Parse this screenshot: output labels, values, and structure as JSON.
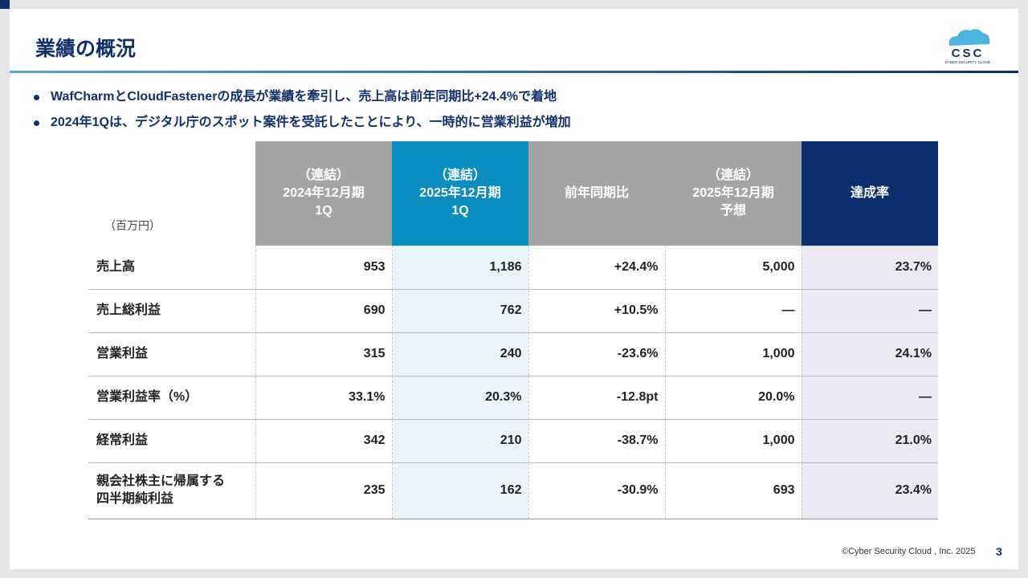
{
  "title": "業績の概況",
  "logo": {
    "text": "CSC",
    "subtext": "CYBER SECURITY CLOUD"
  },
  "bullets": [
    "WafCharmとCloudFastenerの成長が業績を牽引し、売上高は前年同期比+24.4%で着地",
    "2024年1Qは、デジタル庁のスポット案件を受託したことにより、一時的に営業利益が増加"
  ],
  "table": {
    "unit": "（百万円）",
    "headers": [
      [
        "（連結）",
        "2024年12月期",
        "1Q"
      ],
      [
        "（連結）",
        "2025年12月期",
        "1Q"
      ],
      [
        "前年同期比"
      ],
      [
        "（連結）",
        "2025年12月期",
        "予想"
      ],
      [
        "達成率"
      ]
    ],
    "rows": [
      {
        "label": "売上高",
        "values": [
          "953",
          "1,186",
          "+24.4%",
          "5,000",
          "23.7%"
        ]
      },
      {
        "label": "売上総利益",
        "values": [
          "690",
          "762",
          "+10.5%",
          "—",
          "—"
        ]
      },
      {
        "label": "営業利益",
        "values": [
          "315",
          "240",
          "-23.6%",
          "1,000",
          "24.1%"
        ]
      },
      {
        "label": "営業利益率（%）",
        "values": [
          "33.1%",
          "20.3%",
          "-12.8pt",
          "20.0%",
          "—"
        ]
      },
      {
        "label": "経常利益",
        "values": [
          "342",
          "210",
          "-38.7%",
          "1,000",
          "21.0%"
        ]
      },
      {
        "label": "親会社株主に帰属する四半期純利益",
        "label_lines": [
          "親会社株主に帰属する",
          "四半期純利益"
        ],
        "values": [
          "235",
          "162",
          "-30.9%",
          "693",
          "23.4%"
        ]
      }
    ]
  },
  "footer": {
    "copyright": "©Cyber Security Cloud , Inc. 2025",
    "page": "3"
  },
  "colors": {
    "navy": "#0c2e6e",
    "blue": "#0a8ec0",
    "gray": "#a5a5a5"
  }
}
